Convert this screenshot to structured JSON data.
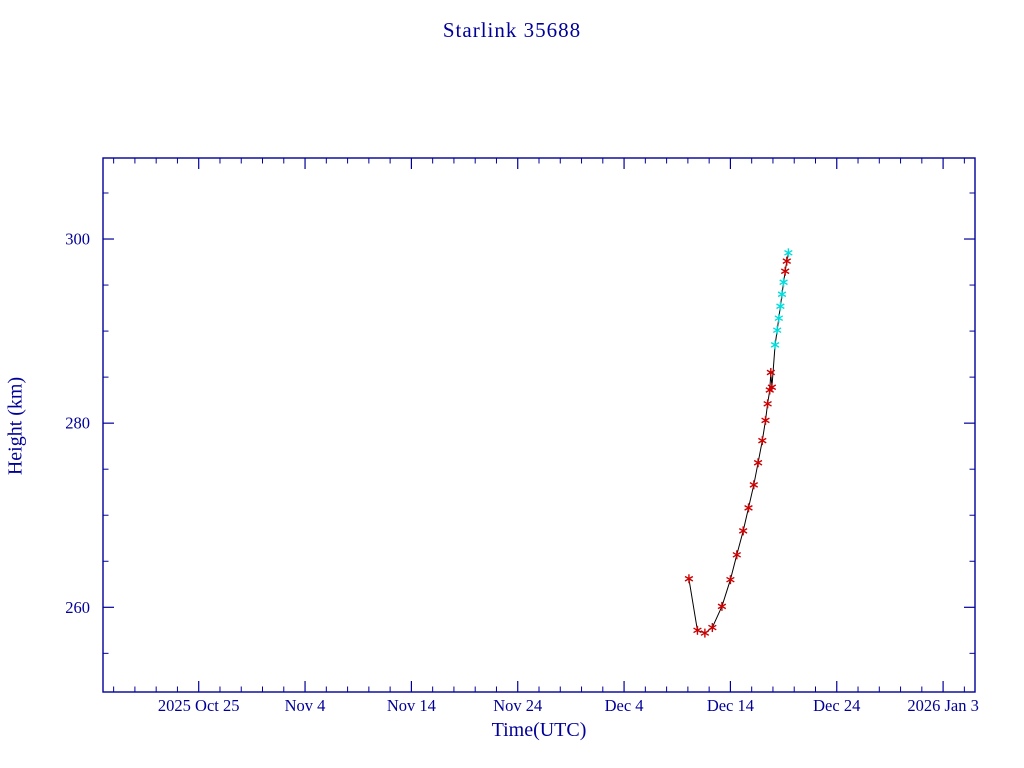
{
  "page": {
    "background": "#ffffff"
  },
  "chart_data": {
    "type": "line",
    "title": "Starlink 35688",
    "xlabel": "Time(UTC)",
    "ylabel": "Height (km)",
    "axis_color": "#000099",
    "line_color": "#000000",
    "marker_style": "asterisk",
    "marker_colors": {
      "red": "#cc0000",
      "cyan": "#00dddd"
    },
    "x_axis": {
      "note": "x measured in days; day 0 = left edge of frame; tick labels are dates shown on screen",
      "range_days": [
        0,
        82
      ],
      "major_tick_days": [
        9,
        19,
        29,
        39,
        49,
        59,
        69,
        79
      ],
      "tick_labels": [
        "2025 Oct 25",
        "Nov 4",
        "Nov 14",
        "Nov 24",
        "Dec 4",
        "Dec 14",
        "Dec 24",
        "2026 Jan 3"
      ],
      "minor_tick_step_days": 2
    },
    "y_axis": {
      "range_km": [
        250.8,
        308.8
      ],
      "major_ticks": [
        260,
        280,
        300
      ],
      "tick_labels": [
        "260",
        "280",
        "300"
      ],
      "minor_tick_step_km": 5
    },
    "points": [
      {
        "day": 55.1,
        "km": 263.1,
        "c": "red"
      },
      {
        "day": 55.9,
        "km": 257.5,
        "c": "red"
      },
      {
        "day": 56.6,
        "km": 257.2,
        "c": "red"
      },
      {
        "day": 57.3,
        "km": 257.8,
        "c": "red"
      },
      {
        "day": 58.2,
        "km": 260.1,
        "c": "red"
      },
      {
        "day": 59.0,
        "km": 263.0,
        "c": "red"
      },
      {
        "day": 59.6,
        "km": 265.7,
        "c": "red"
      },
      {
        "day": 60.2,
        "km": 268.3,
        "c": "red"
      },
      {
        "day": 60.7,
        "km": 270.8,
        "c": "red"
      },
      {
        "day": 61.2,
        "km": 273.3,
        "c": "red"
      },
      {
        "day": 61.6,
        "km": 275.7,
        "c": "red"
      },
      {
        "day": 62.0,
        "km": 278.1,
        "c": "red"
      },
      {
        "day": 62.3,
        "km": 280.3,
        "c": "red"
      },
      {
        "day": 62.5,
        "km": 282.1,
        "c": "red"
      },
      {
        "day": 62.7,
        "km": 283.6,
        "c": "red"
      },
      {
        "day": 62.8,
        "km": 285.5,
        "c": "red"
      },
      {
        "day": 62.9,
        "km": 283.9,
        "c": "red"
      },
      {
        "day": 63.2,
        "km": 288.5,
        "c": "cyan"
      },
      {
        "day": 63.4,
        "km": 290.1,
        "c": "cyan"
      },
      {
        "day": 63.55,
        "km": 291.4,
        "c": "cyan"
      },
      {
        "day": 63.7,
        "km": 292.7,
        "c": "cyan"
      },
      {
        "day": 63.85,
        "km": 294.0,
        "c": "cyan"
      },
      {
        "day": 64.0,
        "km": 295.3,
        "c": "cyan"
      },
      {
        "day": 64.15,
        "km": 296.5,
        "c": "red"
      },
      {
        "day": 64.3,
        "km": 297.6,
        "c": "red"
      },
      {
        "day": 64.45,
        "km": 298.5,
        "c": "cyan"
      }
    ]
  }
}
